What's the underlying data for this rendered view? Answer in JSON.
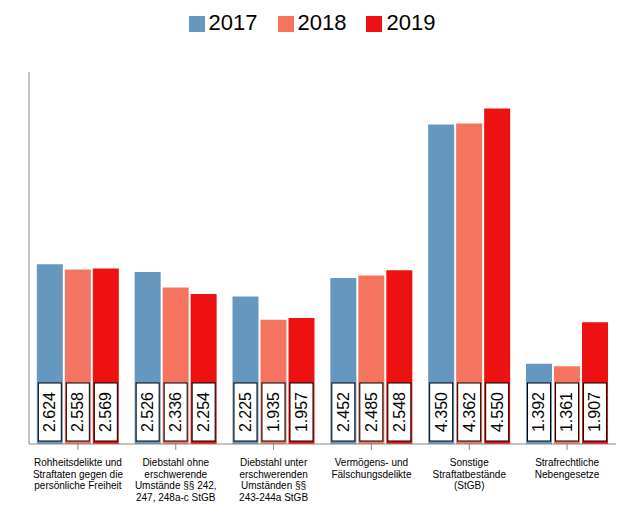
{
  "chart_data": {
    "type": "bar",
    "categories": [
      "Rohheitsdelikte und Straftaten gegen die persönliche Freiheit",
      "Diebstahl ohne erschwerende Umstände §§ 242, 247, 248a-c StGB",
      "Diebstahl unter erschwerenden Umständen §§ 243-244a StGB",
      "Vermögens- und Fälschungsdelikte",
      "Sonstige Straftatbestände (StGB)",
      "Strafrechtliche Nebengesetze"
    ],
    "series": [
      {
        "name": "2017",
        "color": "#6597bf",
        "values": [
          2624,
          2526,
          2225,
          2452,
          4350,
          1392
        ],
        "value_labels": [
          "2.624",
          "2.526",
          "2.225",
          "2.452",
          "4.350",
          "1.392"
        ]
      },
      {
        "name": "2018",
        "color": "#f47460",
        "values": [
          2558,
          2336,
          1935,
          2485,
          4362,
          1361
        ],
        "value_labels": [
          "2.558",
          "2.336",
          "1.935",
          "2.485",
          "4.362",
          "1.361"
        ]
      },
      {
        "name": "2019",
        "color": "#ee1111",
        "values": [
          2569,
          2254,
          1957,
          2548,
          4550,
          1907
        ],
        "value_labels": [
          "2.569",
          "2.254",
          "1.957",
          "2.548",
          "4.550",
          "1.907"
        ]
      }
    ],
    "ylim": [
      400,
      5000
    ],
    "tick_labels": "x",
    "grid": false,
    "legend": "top",
    "data_labels": true
  }
}
